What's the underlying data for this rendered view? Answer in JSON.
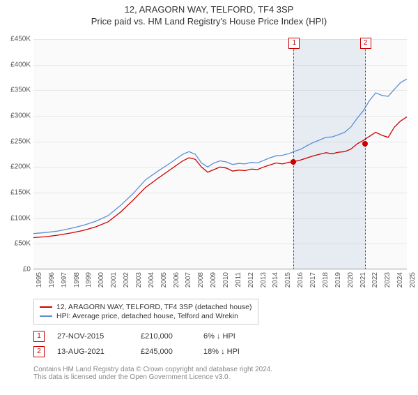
{
  "title": "12, ARAGORN WAY, TELFORD, TF4 3SP",
  "subtitle": "Price paid vs. HM Land Registry's House Price Index (HPI)",
  "chart": {
    "type": "line",
    "background_color": "#fafafa",
    "grid_color": "#e6e6e6",
    "axis_color": "#999999",
    "label_color": "#555555",
    "label_fontsize": 10,
    "yaxis": {
      "min": 0,
      "max": 450000,
      "tick_step": 50000,
      "tick_labels": [
        "£0",
        "£50K",
        "£100K",
        "£150K",
        "£200K",
        "£250K",
        "£300K",
        "£350K",
        "£400K",
        "£450K"
      ]
    },
    "xaxis": {
      "min": 1995,
      "max": 2025,
      "tick_step": 1,
      "tick_labels": [
        "1995",
        "1996",
        "1997",
        "1998",
        "1999",
        "2000",
        "2001",
        "2002",
        "2003",
        "2004",
        "2005",
        "2006",
        "2007",
        "2008",
        "2009",
        "2010",
        "2011",
        "2012",
        "2013",
        "2014",
        "2015",
        "2016",
        "2017",
        "2018",
        "2019",
        "2020",
        "2021",
        "2022",
        "2023",
        "2024",
        "2025"
      ]
    },
    "shaded_region": {
      "from_year": 2015.9,
      "to_year": 2021.62,
      "color": "rgba(100,140,200,0.12)"
    },
    "transactions": [
      {
        "n": "1",
        "year": 2015.9,
        "value": 210000,
        "line_color": "#c00000"
      },
      {
        "n": "2",
        "year": 2021.62,
        "value": 245000,
        "line_color": "#c00000"
      }
    ],
    "series": [
      {
        "name": "12, ARAGORN WAY, TELFORD, TF4 3SP (detached house)",
        "color": "#cc0000",
        "line_width": 1.3,
        "points": [
          [
            1995,
            62000
          ],
          [
            1996,
            64000
          ],
          [
            1997,
            67000
          ],
          [
            1998,
            71000
          ],
          [
            1999,
            76000
          ],
          [
            2000,
            83000
          ],
          [
            2001,
            93000
          ],
          [
            2002,
            112000
          ],
          [
            2003,
            135000
          ],
          [
            2004,
            160000
          ],
          [
            2005,
            178000
          ],
          [
            2006,
            195000
          ],
          [
            2007,
            212000
          ],
          [
            2007.5,
            218000
          ],
          [
            2008,
            215000
          ],
          [
            2008.5,
            200000
          ],
          [
            2009,
            190000
          ],
          [
            2009.5,
            195000
          ],
          [
            2010,
            200000
          ],
          [
            2010.5,
            198000
          ],
          [
            2011,
            192000
          ],
          [
            2011.5,
            194000
          ],
          [
            2012,
            193000
          ],
          [
            2012.5,
            196000
          ],
          [
            2013,
            195000
          ],
          [
            2013.5,
            200000
          ],
          [
            2014,
            204000
          ],
          [
            2014.5,
            208000
          ],
          [
            2015,
            206000
          ],
          [
            2015.5,
            209000
          ],
          [
            2016,
            211000
          ],
          [
            2016.5,
            214000
          ],
          [
            2017,
            218000
          ],
          [
            2017.5,
            222000
          ],
          [
            2018,
            225000
          ],
          [
            2018.5,
            228000
          ],
          [
            2019,
            226000
          ],
          [
            2019.5,
            229000
          ],
          [
            2020,
            230000
          ],
          [
            2020.5,
            235000
          ],
          [
            2021,
            245000
          ],
          [
            2021.5,
            252000
          ],
          [
            2022,
            260000
          ],
          [
            2022.5,
            268000
          ],
          [
            2023,
            262000
          ],
          [
            2023.5,
            258000
          ],
          [
            2024,
            278000
          ],
          [
            2024.5,
            290000
          ],
          [
            2025,
            298000
          ]
        ]
      },
      {
        "name": "HPI: Average price, detached house, Telford and Wrekin",
        "color": "#5b8fd6",
        "line_width": 1.3,
        "points": [
          [
            1995,
            70000
          ],
          [
            1996,
            72000
          ],
          [
            1997,
            75000
          ],
          [
            1998,
            80000
          ],
          [
            1999,
            86000
          ],
          [
            2000,
            94000
          ],
          [
            2001,
            105000
          ],
          [
            2002,
            125000
          ],
          [
            2003,
            148000
          ],
          [
            2004,
            175000
          ],
          [
            2005,
            192000
          ],
          [
            2006,
            208000
          ],
          [
            2007,
            225000
          ],
          [
            2007.5,
            230000
          ],
          [
            2008,
            225000
          ],
          [
            2008.5,
            208000
          ],
          [
            2009,
            200000
          ],
          [
            2009.5,
            208000
          ],
          [
            2010,
            212000
          ],
          [
            2010.5,
            210000
          ],
          [
            2011,
            205000
          ],
          [
            2011.5,
            207000
          ],
          [
            2012,
            206000
          ],
          [
            2012.5,
            209000
          ],
          [
            2013,
            208000
          ],
          [
            2013.5,
            213000
          ],
          [
            2014,
            218000
          ],
          [
            2014.5,
            222000
          ],
          [
            2015,
            223000
          ],
          [
            2015.5,
            226000
          ],
          [
            2016,
            231000
          ],
          [
            2016.5,
            235000
          ],
          [
            2017,
            242000
          ],
          [
            2017.5,
            248000
          ],
          [
            2018,
            253000
          ],
          [
            2018.5,
            258000
          ],
          [
            2019,
            259000
          ],
          [
            2019.5,
            263000
          ],
          [
            2020,
            268000
          ],
          [
            2020.5,
            278000
          ],
          [
            2021,
            295000
          ],
          [
            2021.5,
            310000
          ],
          [
            2022,
            330000
          ],
          [
            2022.5,
            345000
          ],
          [
            2023,
            340000
          ],
          [
            2023.5,
            338000
          ],
          [
            2024,
            352000
          ],
          [
            2024.5,
            365000
          ],
          [
            2025,
            372000
          ]
        ]
      }
    ]
  },
  "legend": {
    "entries": [
      {
        "label": "12, ARAGORN WAY, TELFORD, TF4 3SP (detached house)",
        "color": "#cc0000"
      },
      {
        "label": "HPI: Average price, detached house, Telford and Wrekin",
        "color": "#5b8fd6"
      }
    ]
  },
  "transactions_table": [
    {
      "n": "1",
      "date": "27-NOV-2015",
      "price": "£210,000",
      "diff": "6% ↓ HPI"
    },
    {
      "n": "2",
      "date": "13-AUG-2021",
      "price": "£245,000",
      "diff": "18% ↓ HPI"
    }
  ],
  "footer": {
    "line1": "Contains HM Land Registry data © Crown copyright and database right 2024.",
    "line2": "This data is licensed under the Open Government Licence v3.0."
  }
}
